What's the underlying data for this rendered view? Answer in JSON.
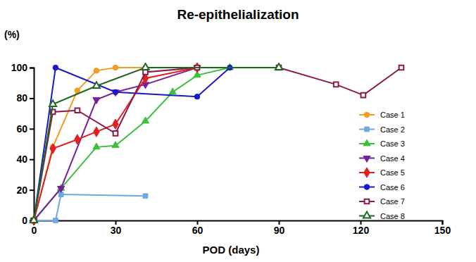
{
  "chart_data": {
    "type": "line",
    "title": "Re-epithelialization",
    "x_label": "POD (days)",
    "y_label": "(%)",
    "xlim": [
      0,
      150
    ],
    "xticks": [
      0,
      30,
      60,
      90,
      120,
      150
    ],
    "ylim": [
      0,
      100
    ],
    "yticks": [
      0,
      20,
      40,
      60,
      80,
      100
    ],
    "legend": "right",
    "series": [
      {
        "name": "Case 1",
        "color": "#f39c1f",
        "marker": "circle",
        "x": [
          0,
          7,
          16,
          23,
          30,
          41
        ],
        "values": [
          0,
          48,
          85,
          98,
          100,
          100
        ]
      },
      {
        "name": "Case 2",
        "color": "#6fa8e0",
        "marker": "square",
        "x": [
          0,
          8,
          10,
          41
        ],
        "values": [
          0,
          0,
          17,
          16
        ]
      },
      {
        "name": "Case 3",
        "color": "#3cc13c",
        "marker": "triangle",
        "x": [
          0,
          10,
          23,
          30,
          41,
          51,
          60,
          72
        ],
        "values": [
          0,
          21,
          48,
          49,
          65,
          84,
          95,
          100
        ]
      },
      {
        "name": "Case 4",
        "color": "#7a1f9a",
        "marker": "triangle-down",
        "x": [
          0,
          10,
          23,
          30,
          41,
          60
        ],
        "values": [
          0,
          21,
          79,
          84,
          89,
          100
        ]
      },
      {
        "name": "Case 5",
        "color": "#e0201e",
        "marker": "diamond",
        "x": [
          0,
          7,
          16,
          23,
          30,
          41,
          60
        ],
        "values": [
          0,
          47,
          53,
          58,
          63,
          93,
          100
        ]
      },
      {
        "name": "Case 6",
        "color": "#1a1ac8",
        "marker": "circle",
        "x": [
          0,
          8,
          30,
          60,
          72
        ],
        "values": [
          0,
          100,
          84,
          81,
          100
        ]
      },
      {
        "name": "Case 7",
        "color": "#8b1a4a",
        "marker": "square-open",
        "x": [
          0,
          7,
          16,
          30,
          41,
          60,
          90,
          111,
          121,
          135
        ],
        "values": [
          0,
          71,
          72,
          57,
          97,
          100,
          100,
          89,
          82,
          100
        ]
      },
      {
        "name": "Case 8",
        "color": "#1e6b1e",
        "marker": "triangle-open",
        "x": [
          0,
          7,
          23,
          41,
          90
        ],
        "values": [
          0,
          76,
          88,
          100,
          100
        ]
      }
    ]
  }
}
